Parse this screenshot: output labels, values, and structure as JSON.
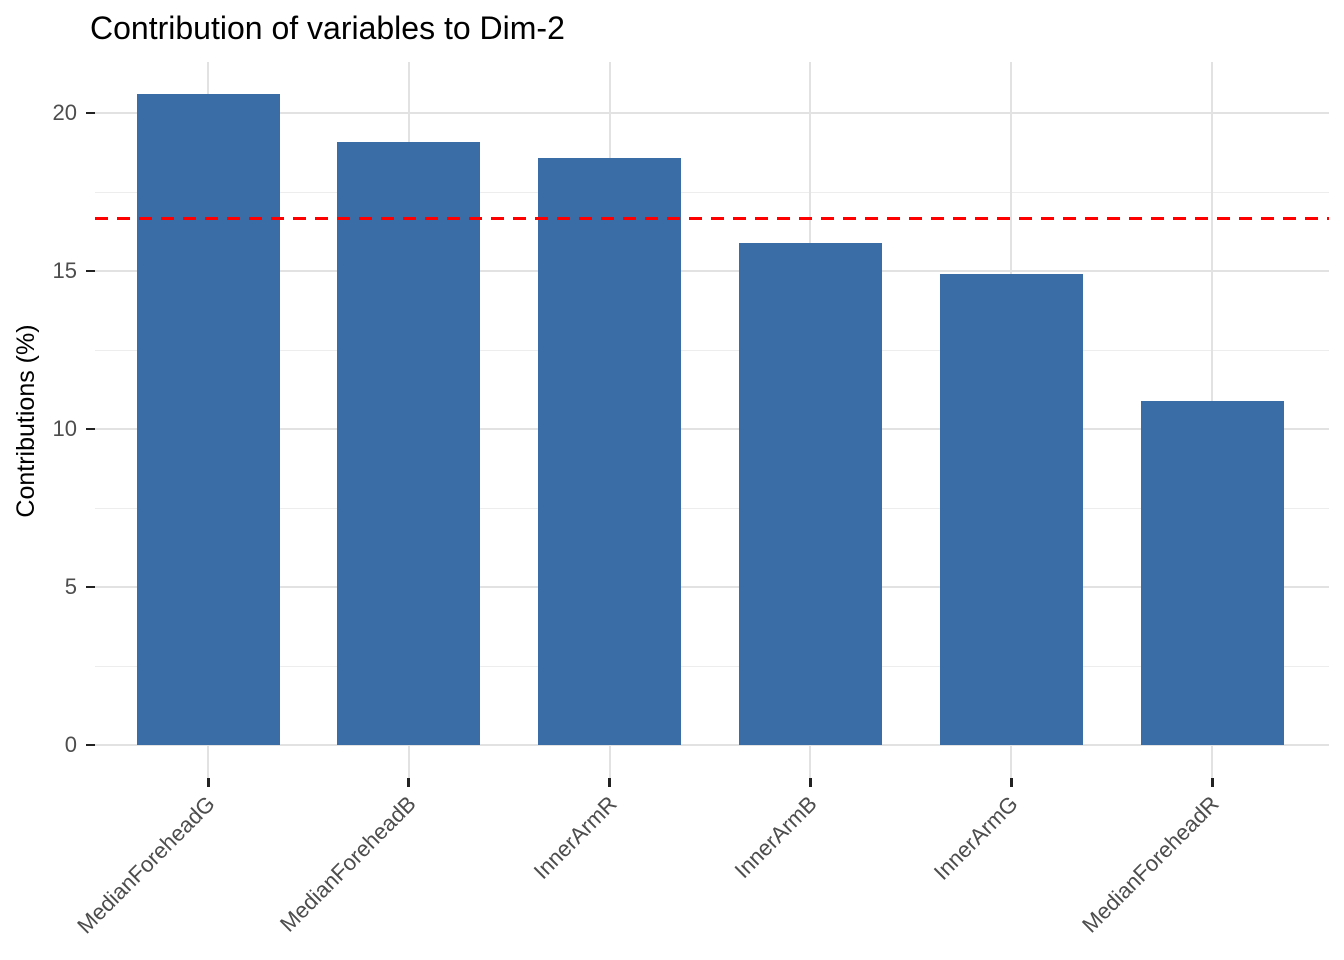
{
  "chart_data": {
    "type": "bar",
    "title": "Contribution of variables to Dim-2",
    "xlabel": "",
    "ylabel": "Contributions (%)",
    "categories": [
      "MedianForeheadG",
      "MedianForeheadB",
      "InnerArmR",
      "InnerArmB",
      "InnerArmG",
      "MedianForeheadR"
    ],
    "values": [
      20.6,
      19.1,
      18.6,
      15.9,
      14.9,
      10.9
    ],
    "yticks": [
      0,
      5,
      10,
      15,
      20
    ],
    "ylim": [
      0,
      21.7
    ],
    "grid": "horizontal major+minor, vertical major at category centers",
    "legend": "none",
    "x_tick_label_rotation_deg": 45,
    "reference_line": {
      "value": 16.67,
      "style": "dashed",
      "color": "#FF0000"
    }
  },
  "colors": {
    "bar_fill": "#3A6DA5",
    "reference_line": "#FF0000",
    "gridline_major": "#E2E2E2",
    "gridline_minor": "#EDEDED",
    "axis_tick": "#222222",
    "tick_label_text": "#4D4D4D",
    "title_text": "#000000",
    "background": "#FFFFFF"
  }
}
